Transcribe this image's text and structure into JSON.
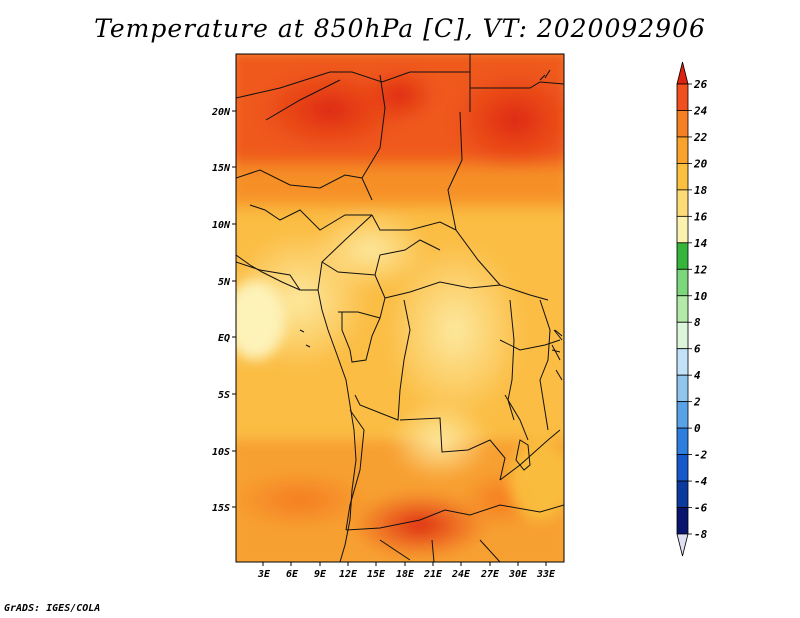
{
  "title": "Temperature at 850hPa [C], VT: 2020092906",
  "footer": "GrADS: IGES/COLA",
  "map": {
    "variable": "Temperature at 850hPa",
    "units": "C",
    "valid_time": "2020092906",
    "lat_labels": [
      "20N",
      "15N",
      "10N",
      "5N",
      "EQ",
      "5S",
      "10S",
      "15S"
    ],
    "lon_labels": [
      "3E",
      "6E",
      "9E",
      "12E",
      "15E",
      "18E",
      "21E",
      "24E",
      "27E",
      "30E",
      "33E"
    ]
  },
  "colorbar": {
    "labels": [
      "26",
      "24",
      "22",
      "20",
      "18",
      "16",
      "14",
      "12",
      "10",
      "8",
      "6",
      "4",
      "2",
      "0",
      "-2",
      "-4",
      "-6",
      "-8"
    ],
    "colors": [
      "#dd2210",
      "#f0501e",
      "#f58024",
      "#f9a22c",
      "#fbc040",
      "#fddc78",
      "#fcf2b0",
      "#36b43c",
      "#7cd67a",
      "#b4eaa8",
      "#dcf6dc",
      "#c2e2f8",
      "#90c6ee",
      "#5aa2e6",
      "#2e7ee0",
      "#1658cc",
      "#0a3a9e",
      "#08146e",
      "#e0e0f4"
    ]
  }
}
